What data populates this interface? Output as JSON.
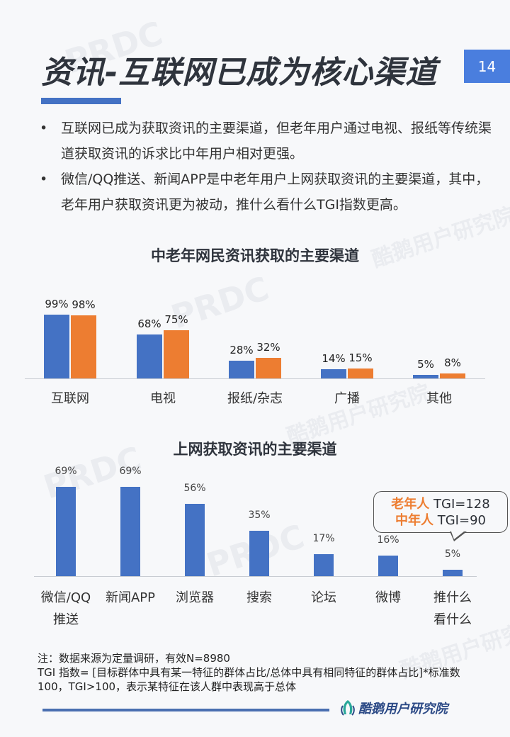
{
  "header": {
    "title": "资讯-互联网已成为核心渠道",
    "page_number": "14"
  },
  "bullets": [
    {
      "marker": "•",
      "text": "互联网已成为获取资讯的主要渠道，但老年用户通过电视、报纸等传统渠道获取资讯的诉求比中年用户相对更强。"
    },
    {
      "marker": "•",
      "text": "微信/QQ推送、新闻APP是中老年用户上网获取资讯的主要渠道，其中，老年用户获取资讯更为被动，推什么看什么TGI指数更高。"
    }
  ],
  "colors": {
    "blue": "#4472c4",
    "orange": "#ed7d31",
    "accent": "#4a7ede"
  },
  "chart1": {
    "title": "中老年网民资讯获取的主要渠道",
    "categories": [
      "互联网",
      "电视",
      "报纸/杂志",
      "广播",
      "其他"
    ],
    "blue_labels": [
      "99%",
      "68%",
      "28%",
      "14%",
      "5%"
    ],
    "orange_labels": [
      "98%",
      "75%",
      "32%",
      "15%",
      "8%"
    ]
  },
  "chart2": {
    "title": "上网获取资讯的主要渠道",
    "categories": [
      "微信/QQ\n推送",
      "新闻APP",
      "浏览器",
      "搜索",
      "论坛",
      "微博",
      "推什么\n看什么"
    ],
    "labels": [
      "69%",
      "69%",
      "56%",
      "35%",
      "17%",
      "16%",
      "5%"
    ],
    "callout": {
      "line1_highlight": "老年人",
      "line1_text": " TGI=128",
      "line2_highlight": "中年人",
      "line2_text": " TGI=90"
    }
  },
  "chart_data": [
    {
      "type": "bar",
      "title": "中老年网民资讯获取的主要渠道",
      "categories": [
        "互联网",
        "电视",
        "报纸/杂志",
        "广播",
        "其他"
      ],
      "series": [
        {
          "name": "series-blue",
          "values": [
            99,
            68,
            28,
            14,
            5
          ]
        },
        {
          "name": "series-orange",
          "values": [
            98,
            75,
            32,
            15,
            8
          ]
        }
      ],
      "xlabel": "",
      "ylabel": "",
      "ylim": [
        0,
        100
      ],
      "grid": false,
      "legend": "none",
      "unit": "%"
    },
    {
      "type": "bar",
      "title": "上网获取资讯的主要渠道",
      "categories": [
        "微信/QQ推送",
        "新闻APP",
        "浏览器",
        "搜索",
        "论坛",
        "微博",
        "推什么看什么"
      ],
      "values": [
        69,
        69,
        56,
        35,
        17,
        16,
        5
      ],
      "xlabel": "",
      "ylabel": "",
      "ylim": [
        0,
        70
      ],
      "grid": false,
      "legend": "none",
      "unit": "%",
      "annotations": [
        "老年人 TGI=128",
        "中年人 TGI=90"
      ]
    }
  ],
  "notes": {
    "line1": "注：数据来源为定量调研，有效N=8980",
    "line2": "TGI 指数= [目标群体中具有某一特征的群体占比/总体中具有相同特征的群体占比]*标准数100，TGI>100，表示某特征在该人群中表现高于总体"
  },
  "footer": {
    "brand": "酷鹅用户研究院"
  },
  "watermarks": [
    "PRDC",
    "酷鹅用户研究院"
  ]
}
